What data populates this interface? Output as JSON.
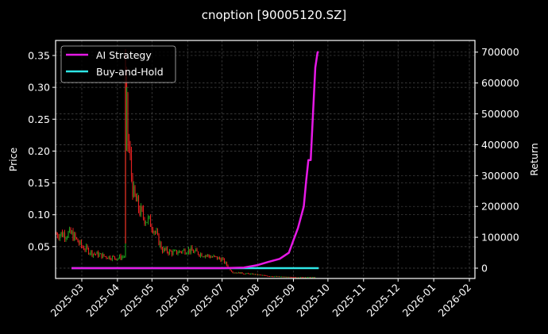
{
  "chart_data": {
    "type": "line",
    "title": "cnoption [90005120.SZ]",
    "xlabel": "",
    "ylabel": "Price",
    "ylabel_right": "Return",
    "grid": true,
    "legend_position": "upper left",
    "colors": {
      "background": "#000000",
      "ai_strategy": "#e619e6",
      "buy_and_hold": "#2ee6e6",
      "candle_up": "#1a9a1a",
      "candle_down": "#e02020",
      "grid": "#555555",
      "axes": "#ffffff"
    },
    "x_ticks": [
      "2025-03",
      "2025-04",
      "2025-05",
      "2025-06",
      "2025-07",
      "2025-08",
      "2025-09",
      "2025-10",
      "2025-11",
      "2025-12",
      "2026-01",
      "2026-02"
    ],
    "y_left_ticks": [
      "0.05",
      "0.10",
      "0.15",
      "0.20",
      "0.25",
      "0.30",
      "0.35"
    ],
    "y_left_range": [
      0.0,
      0.37
    ],
    "y_right_ticks": [
      "0",
      "100000",
      "200000",
      "300000",
      "400000",
      "500000",
      "600000",
      "700000"
    ],
    "y_right_range": [
      -30000,
      740000
    ],
    "legend": [
      "AI Strategy",
      "Buy-and-Hold"
    ],
    "price_series": {
      "name": "Price (candlestick)",
      "x": [
        "2025-02-20",
        "2025-03-01",
        "2025-03-10",
        "2025-03-20",
        "2025-04-01",
        "2025-04-07",
        "2025-04-08",
        "2025-04-10",
        "2025-04-15",
        "2025-04-22",
        "2025-05-01",
        "2025-05-10",
        "2025-05-20",
        "2025-06-01",
        "2025-06-10",
        "2025-06-20",
        "2025-07-01",
        "2025-07-10",
        "2025-07-20",
        "2025-08-01",
        "2025-08-10",
        "2025-08-20",
        "2025-09-01",
        "2025-09-10",
        "2025-09-20"
      ],
      "values": [
        0.07,
        0.05,
        0.04,
        0.035,
        0.032,
        0.035,
        0.3,
        0.22,
        0.13,
        0.1,
        0.085,
        0.045,
        0.04,
        0.045,
        0.04,
        0.035,
        0.03,
        0.01,
        0.008,
        0.006,
        0.004,
        0.003,
        0.002,
        0.002,
        0.002
      ]
    },
    "series": [
      {
        "name": "AI Strategy",
        "x": [
          "2025-02-20",
          "2025-07-01",
          "2025-07-20",
          "2025-08-01",
          "2025-08-10",
          "2025-08-20",
          "2025-08-28",
          "2025-09-01",
          "2025-09-05",
          "2025-09-10",
          "2025-09-12",
          "2025-09-14",
          "2025-09-16",
          "2025-09-18",
          "2025-09-20",
          "2025-09-22",
          "2025-09-23"
        ],
        "values": [
          0,
          0,
          2000,
          10000,
          20000,
          30000,
          50000,
          90000,
          130000,
          200000,
          280000,
          350000,
          350000,
          500000,
          650000,
          700000,
          700000
        ]
      },
      {
        "name": "Buy-and-Hold",
        "x": [
          "2025-02-20",
          "2025-09-23"
        ],
        "values": [
          0,
          0
        ]
      }
    ]
  }
}
